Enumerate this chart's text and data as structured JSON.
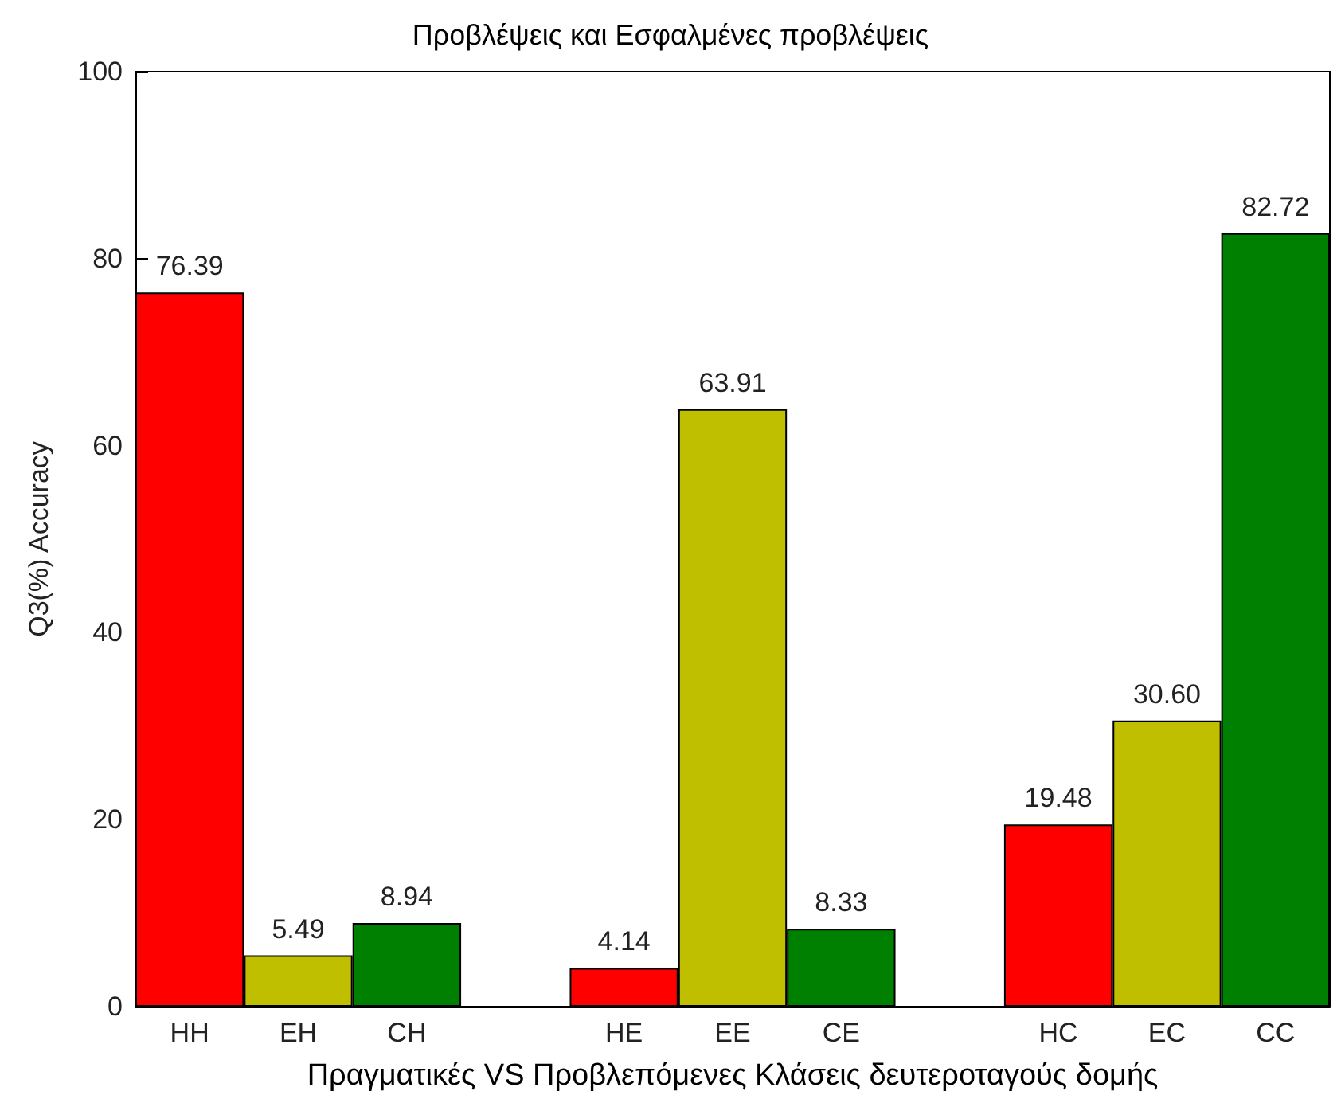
{
  "chart_data": {
    "type": "bar",
    "title": "Προβλέψεις και Εσφαλμένες προβλέψεις",
    "xlabel": "Πραγματικές VS Προβλεπόμενες Κλάσεις δευτεροταγούς δομής",
    "ylabel": "Q3(%) Accuracy",
    "categories": [
      "HH",
      "EH",
      "CH",
      null,
      "HE",
      "EE",
      "CE",
      null,
      "HC",
      "EC",
      "CC"
    ],
    "values": [
      76.39,
      5.49,
      8.94,
      null,
      4.14,
      63.91,
      8.33,
      null,
      19.48,
      30.6,
      82.72
    ],
    "colors": [
      "#ff0000",
      "#bfbf00",
      "#008000",
      null,
      "#ff0000",
      "#bfbf00",
      "#008000",
      null,
      "#ff0000",
      "#bfbf00",
      "#008000"
    ],
    "value_labels": [
      "76.39",
      "5.49",
      "8.94",
      null,
      "4.14",
      "63.91",
      "8.33",
      null,
      "19.48",
      "30.60",
      "82.72"
    ],
    "ylim": [
      0,
      100
    ],
    "yticks": [
      0,
      20,
      40,
      60,
      80,
      100
    ]
  }
}
